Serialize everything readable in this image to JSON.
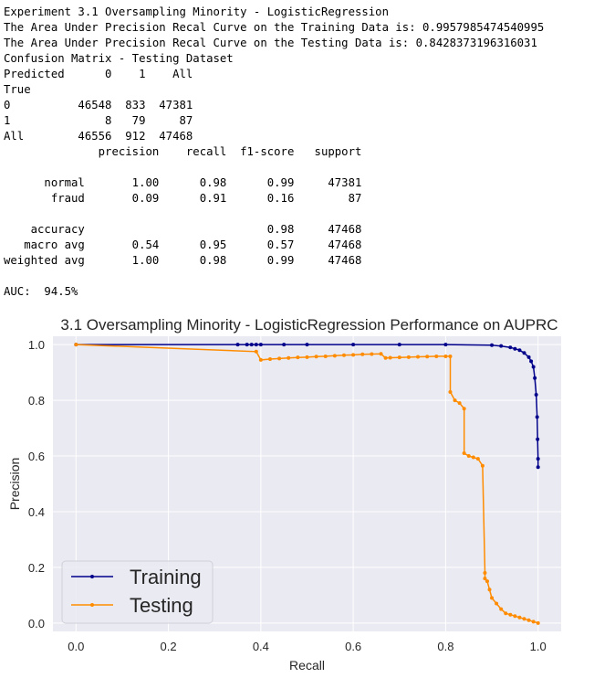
{
  "console": {
    "lines": [
      "Experiment 3.1 Oversampling Minority - LogisticRegression",
      "The Area Under Precision Recal Curve on the Training Data is: 0.9957985474540995",
      "The Area Under Precision Recal Curve on the Testing Data is: 0.8428373196316031",
      "Confusion Matrix - Testing Dataset",
      "Predicted      0    1    All",
      "True",
      "0          46548  833  47381",
      "1              8   79     87",
      "All        46556  912  47468",
      "              precision    recall  f1-score   support",
      "",
      "      normal       1.00      0.98      0.99     47381",
      "       fraud       0.09      0.91      0.16        87",
      "",
      "    accuracy                           0.98     47468",
      "   macro avg       0.54      0.95      0.57     47468",
      "weighted avg       1.00      0.98      0.99     47468",
      "",
      "AUC:  94.5%"
    ]
  },
  "chart_data": {
    "type": "line",
    "title": "3.1 Oversampling Minority - LogisticRegression Performance on AUPRC",
    "xlabel": "Recall",
    "ylabel": "Precision",
    "xlim": [
      -0.05,
      1.05
    ],
    "ylim": [
      -0.03,
      1.03
    ],
    "xticks": [
      0.0,
      0.2,
      0.4,
      0.6,
      0.8,
      1.0
    ],
    "yticks": [
      0.0,
      0.2,
      0.4,
      0.6,
      0.8,
      1.0
    ],
    "xtick_labels": [
      "0.0",
      "0.2",
      "0.4",
      "0.6",
      "0.8",
      "1.0"
    ],
    "ytick_labels": [
      "0.0",
      "0.2",
      "0.4",
      "0.6",
      "0.8",
      "1.0"
    ],
    "grid": true,
    "legend_position": "lower-left",
    "series": [
      {
        "name": "Training",
        "color": "#00008b",
        "x": [
          0.0,
          0.35,
          0.37,
          0.38,
          0.39,
          0.4,
          0.45,
          0.5,
          0.6,
          0.7,
          0.8,
          0.9,
          0.92,
          0.94,
          0.95,
          0.96,
          0.97,
          0.98,
          0.985,
          0.99,
          0.993,
          0.996,
          0.998,
          0.999,
          1.0,
          1.0
        ],
        "y": [
          1.0,
          1.0,
          1.0,
          1.0,
          1.0,
          1.0,
          1.0,
          1.0,
          1.0,
          1.0,
          1.0,
          0.998,
          0.995,
          0.99,
          0.985,
          0.98,
          0.97,
          0.955,
          0.94,
          0.92,
          0.88,
          0.82,
          0.74,
          0.66,
          0.59,
          0.56
        ]
      },
      {
        "name": "Testing",
        "color": "#ff8c00",
        "x": [
          0.0,
          0.39,
          0.4,
          0.42,
          0.44,
          0.46,
          0.48,
          0.5,
          0.52,
          0.54,
          0.56,
          0.58,
          0.6,
          0.62,
          0.64,
          0.66,
          0.67,
          0.68,
          0.7,
          0.72,
          0.74,
          0.76,
          0.78,
          0.8,
          0.81,
          0.81,
          0.82,
          0.83,
          0.84,
          0.84,
          0.85,
          0.86,
          0.87,
          0.88,
          0.885,
          0.885,
          0.89,
          0.895,
          0.9,
          0.91,
          0.92,
          0.93,
          0.94,
          0.95,
          0.96,
          0.97,
          0.98,
          0.99,
          1.0
        ],
        "y": [
          1.0,
          0.975,
          0.945,
          0.948,
          0.95,
          0.952,
          0.954,
          0.955,
          0.957,
          0.958,
          0.96,
          0.962,
          0.963,
          0.965,
          0.966,
          0.967,
          0.952,
          0.953,
          0.954,
          0.955,
          0.956,
          0.957,
          0.958,
          0.958,
          0.958,
          0.83,
          0.8,
          0.79,
          0.77,
          0.61,
          0.6,
          0.595,
          0.59,
          0.565,
          0.18,
          0.16,
          0.15,
          0.12,
          0.09,
          0.07,
          0.05,
          0.035,
          0.03,
          0.025,
          0.02,
          0.015,
          0.01,
          0.005,
          0.0
        ]
      }
    ]
  }
}
